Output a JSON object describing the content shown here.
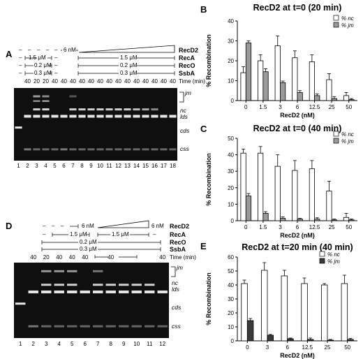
{
  "panels": {
    "A": "A",
    "B": "B",
    "C": "C",
    "D": "D",
    "E": "E"
  },
  "gelA": {
    "rows": {
      "recd2": {
        "label": "RecD2",
        "conc": "6 nM",
        "dashes": [
          "–",
          "–",
          "–",
          "–",
          "–"
        ]
      },
      "reca": {
        "label": "RecA",
        "left": "1.5 μM",
        "right": "1.5 μM",
        "dashes": [
          "–",
          "–"
        ]
      },
      "reco": {
        "label": "RecO",
        "left": "0.2 μM",
        "right": "0.2 μM",
        "dashes": [
          "–",
          "–"
        ]
      },
      "ssba": {
        "label": "SsbA",
        "left": "0.3 μM",
        "right": "0.3 μM",
        "dashes": [
          "–",
          "–"
        ]
      },
      "time": {
        "label": "Time (min)",
        "values": [
          "40",
          "20",
          "20",
          "40",
          "40",
          "40",
          "40",
          "40",
          "40",
          "40",
          "40",
          "40",
          "40",
          "40",
          "40",
          "40",
          "40"
        ]
      }
    },
    "lanes": [
      "1",
      "2",
      "3",
      "4",
      "5",
      "6",
      "7",
      "8",
      "9",
      "10",
      "11",
      "12",
      "13",
      "14",
      "15",
      "16",
      "17",
      "18"
    ],
    "bands": {
      "jm": "jm",
      "nc": "nc",
      "lds": "lds",
      "cds": "cds",
      "css": "css"
    }
  },
  "gelD": {
    "rows": {
      "recd2": {
        "label": "RecD2",
        "conc_left": "6 nM",
        "conc_right": "6 nM",
        "dashes": [
          "–",
          "–",
          "–",
          "–"
        ]
      },
      "reca": {
        "label": "RecA",
        "conc": "1.5 μM",
        "conc2": "1.5 μM",
        "dashes": [
          "–",
          "–"
        ]
      },
      "reco": {
        "label": "RecO",
        "conc": "0.2 μM"
      },
      "ssba": {
        "label": "SsbA",
        "conc": "0.3 μM"
      },
      "time": {
        "label": "Time (min)",
        "values": [
          "40",
          "20",
          "40",
          "40",
          "40",
          "40",
          "40"
        ]
      }
    },
    "lanes": [
      "1",
      "2",
      "3",
      "4",
      "5",
      "6",
      "7",
      "8",
      "9",
      "10",
      "11",
      "12"
    ],
    "bands": {
      "jm": "jm",
      "nc": "nc",
      "lds": "lds",
      "cds": "cds",
      "css": "css"
    }
  },
  "chart_data": [
    {
      "panel": "B",
      "type": "bar",
      "title": "RecD2 at t=0 (20 min)",
      "xlabel": "RecD2 (nM)",
      "ylabel": "% Recombination",
      "ylim": [
        0,
        40
      ],
      "yticks": [
        "0",
        "10",
        "20",
        "30",
        "40"
      ],
      "categories": [
        "0",
        "1.5",
        "3",
        "6",
        "12.5",
        "25",
        "50"
      ],
      "series": [
        {
          "name": "% nc",
          "color": "#ffffff",
          "values": [
            14,
            20,
            27.5,
            21.5,
            19.5,
            10.5,
            2.5
          ],
          "errors": [
            3,
            3,
            5,
            3.5,
            3.5,
            3,
            1.5
          ]
        },
        {
          "name": "% jm",
          "color": "#9a9a9a",
          "values": [
            29,
            14.5,
            9,
            4,
            2.5,
            1,
            0.5
          ],
          "errors": [
            1,
            1.5,
            0.8,
            1,
            0.8,
            1,
            0.5
          ]
        }
      ],
      "legend": "top-right"
    },
    {
      "panel": "C",
      "type": "bar",
      "title": "RecD2 at t=0 (40 min)",
      "xlabel": "RecD2 (nM)",
      "ylabel": "% Recombination",
      "ylim": [
        0,
        50
      ],
      "yticks": [
        "0",
        "10",
        "20",
        "30",
        "40",
        "50"
      ],
      "categories": [
        "0",
        "1.5",
        "3",
        "6",
        "12.5",
        "25",
        "50"
      ],
      "series": [
        {
          "name": "% nc",
          "color": "#ffffff",
          "values": [
            41,
            41,
            33,
            30.5,
            31.5,
            18,
            2
          ],
          "errors": [
            2.5,
            4,
            7,
            6,
            5,
            6,
            2.5
          ]
        },
        {
          "name": "% jm",
          "color": "#9a9a9a",
          "values": [
            15,
            4.5,
            1.5,
            1,
            1,
            0.5,
            0.5
          ],
          "errors": [
            1.5,
            1,
            0.8,
            0.4,
            0.8,
            0.5,
            0.5
          ]
        }
      ],
      "legend": "top-right"
    },
    {
      "panel": "E",
      "type": "bar",
      "title": "RecD2 at t=20 min (40 min)",
      "xlabel": "RecD2 (nM)",
      "ylabel": "% Recombination",
      "ylim": [
        0,
        60
      ],
      "yticks": [
        "0",
        "10",
        "20",
        "30",
        "40",
        "50",
        "60"
      ],
      "categories": [
        "0",
        "3",
        "6",
        "12.5",
        "25",
        "50"
      ],
      "series": [
        {
          "name": "% nc",
          "color": "#ffffff",
          "values": [
            41,
            50.5,
            46.5,
            41,
            40,
            41
          ],
          "errors": [
            2.5,
            5.5,
            4,
            4,
            1,
            6
          ]
        },
        {
          "name": "% jm",
          "color": "#3a3a3a",
          "values": [
            14.5,
            4,
            1.5,
            1,
            0.5,
            1
          ],
          "errors": [
            1.5,
            0.6,
            0.5,
            1,
            0.5,
            0.8
          ]
        }
      ],
      "legend": "top-right"
    }
  ]
}
